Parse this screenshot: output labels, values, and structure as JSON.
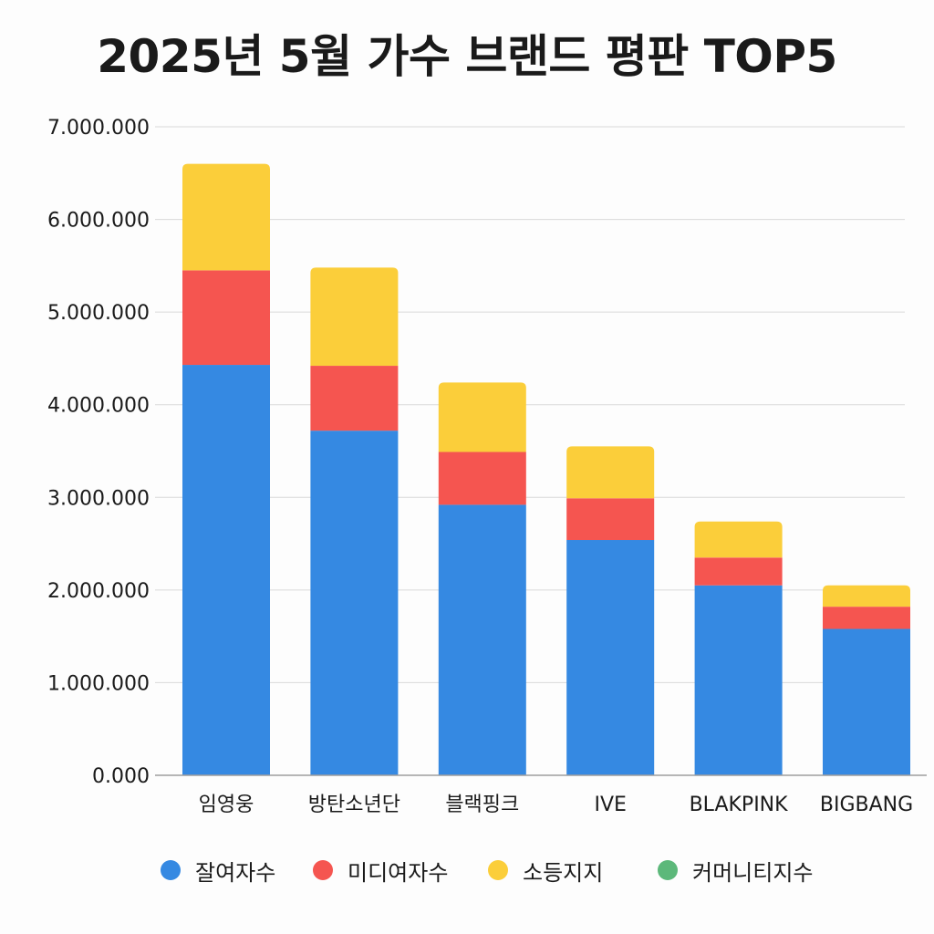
{
  "title": "2025년 5월 가수 브랜드 평판 TOP5",
  "chart_data": {
    "type": "bar",
    "stacked": true,
    "title": "2025년 5월 가수 브랜드 평판 TOP5",
    "xlabel": "",
    "ylabel": "",
    "categories": [
      "임영웅",
      "방탄소년단",
      "블랙핑크",
      "IVE",
      "BLAKPINK",
      "BIGBANG"
    ],
    "ylim": [
      0,
      7000000
    ],
    "yticks": [
      0,
      1000000,
      2000000,
      3000000,
      4000000,
      5000000,
      6000000,
      7000000
    ],
    "ytick_labels": [
      "0.000",
      "1.000.000",
      "2.000.000",
      "3.000.000",
      "4.000.000",
      "5.000.000",
      "6.000.000",
      "7.000.000"
    ],
    "grid": true,
    "legend_position": "bottom",
    "series": [
      {
        "name": "잘여자수",
        "color": "#3589e2",
        "values": [
          4430000,
          3720000,
          2920000,
          2540000,
          2050000,
          1580000
        ]
      },
      {
        "name": "미디여자수",
        "color": "#f55550",
        "values": [
          1020000,
          700000,
          570000,
          450000,
          300000,
          240000
        ]
      },
      {
        "name": "소등지지",
        "color": "#fbce3a",
        "values": [
          1150000,
          1060000,
          750000,
          560000,
          390000,
          230000
        ]
      },
      {
        "name": "커머니티지수",
        "color": "#5cb87a",
        "values": [
          0,
          0,
          0,
          0,
          0,
          0
        ]
      }
    ]
  }
}
